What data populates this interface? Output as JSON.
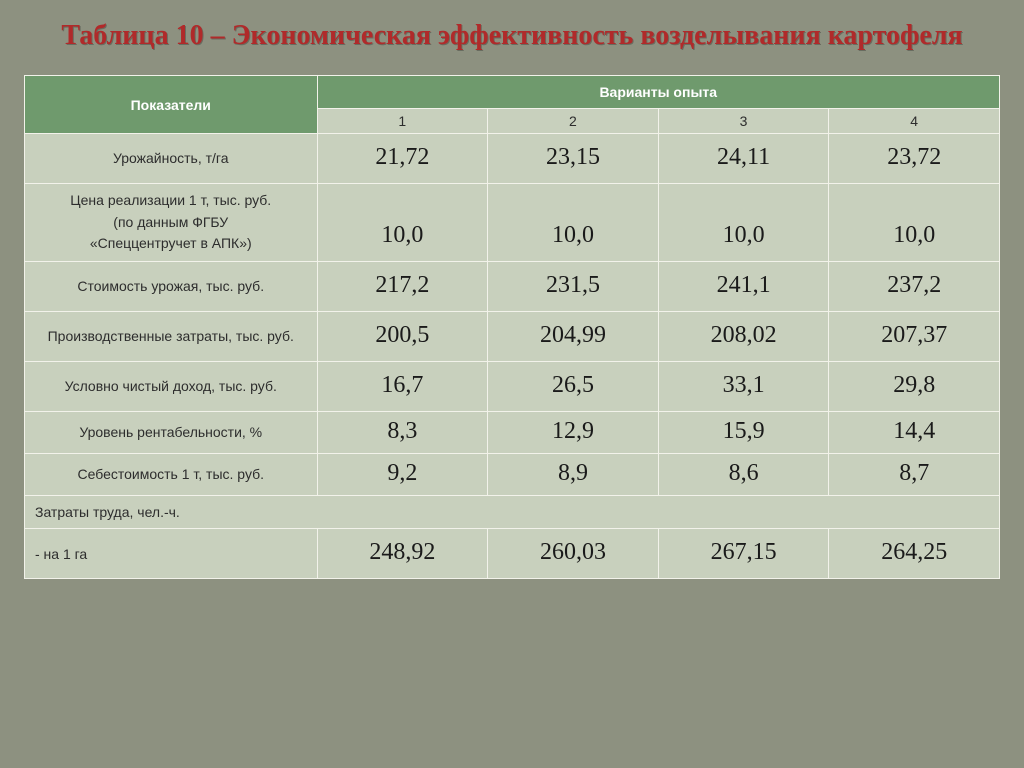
{
  "title": "Таблица 10  – Экономическая эффективность возделывания картофеля",
  "header": {
    "indicators": "Показатели",
    "variants": "Варианты опыта",
    "cols": [
      "1",
      "2",
      "3",
      "4"
    ]
  },
  "rows": [
    {
      "label": "Урожайность, т/га",
      "vals": [
        "21,72",
        "23,15",
        "24,11",
        "23,72"
      ],
      "tall": false
    },
    {
      "label": "Цена реализации 1 т, тыс. руб.\n(по данным ФГБУ\n«Спеццентручет в АПК»)",
      "vals": [
        "10,0",
        "10,0",
        "10,0",
        "10,0"
      ],
      "tall": true
    },
    {
      "label": "Стоимость урожая, тыс. руб.",
      "vals": [
        "217,2",
        "231,5",
        "241,1",
        "237,2"
      ],
      "tall": false
    },
    {
      "label": "Производственные затраты, тыс. руб.",
      "vals": [
        "200,5",
        "204,99",
        "208,02",
        "207,37"
      ],
      "tall": true
    },
    {
      "label": "Условно чистый доход, тыс. руб.",
      "vals": [
        "16,7",
        "26,5",
        "33,1",
        "29,8"
      ],
      "tall": false
    },
    {
      "label": "Уровень рентабельности, %",
      "vals": [
        "8,3",
        "12,9",
        "15,9",
        "14,4"
      ],
      "tall": false,
      "short": true
    },
    {
      "label": "Себестоимость 1 т, тыс. руб.",
      "vals": [
        "9,2",
        "8,9",
        "8,6",
        "8,7"
      ],
      "tall": false,
      "short": true
    }
  ],
  "section": {
    "label": "Затраты труда, чел.-ч."
  },
  "subrow": {
    "label": "- на 1 га",
    "vals": [
      "248,92",
      "260,03",
      "267,15",
      "264,25"
    ]
  },
  "style": {
    "bg": "#8d9180",
    "title_color": "#b02a2a",
    "title_fontsize": 28,
    "header_bg": "#6f9a6d",
    "header_fg": "#ffffff",
    "cell_bg": "#c8d0bd",
    "border_color": "#f2f2ea",
    "label_font": "Arial",
    "label_fontsize": 14,
    "value_font": "Times New Roman",
    "value_fontsize": 24,
    "col_widths_pct": [
      30,
      17.5,
      17.5,
      17.5,
      17.5
    ]
  }
}
